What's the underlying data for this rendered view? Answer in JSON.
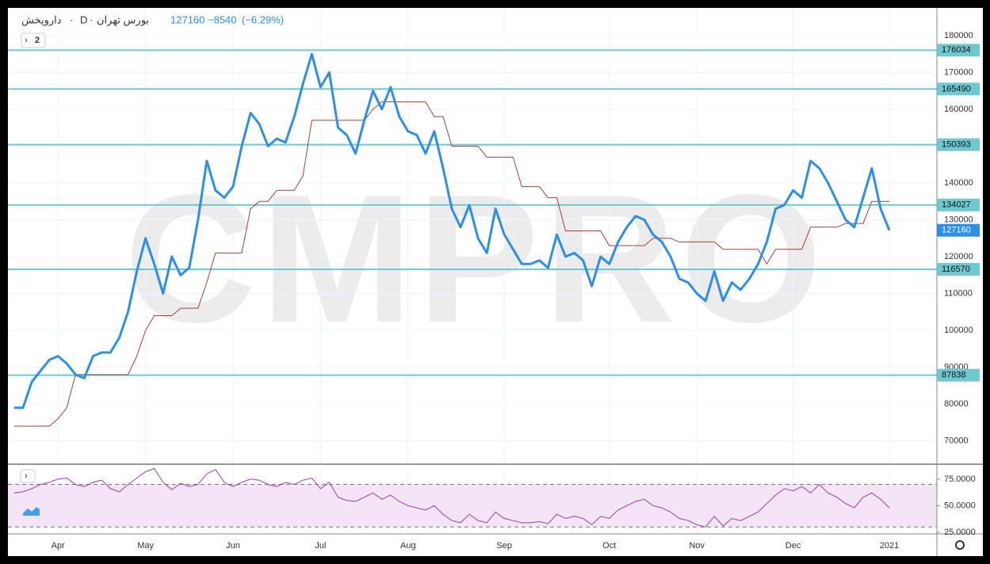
{
  "chart_data": [
    {
      "type": "line",
      "symbol": "داروپخش",
      "interval": "D",
      "exchange": "بورس تهران",
      "last": 127160,
      "change": {
        "value": -8540,
        "label": "−8540"
      },
      "change_pct": {
        "value": -6.29,
        "label": "(−6.29%)"
      },
      "collapsed_count": 2,
      "watermark": "CMPRO",
      "categories": [
        null,
        null,
        null,
        null,
        null,
        "Apr",
        null,
        null,
        null,
        null,
        null,
        null,
        null,
        null,
        null,
        "May",
        null,
        null,
        null,
        null,
        null,
        null,
        null,
        null,
        null,
        "Jun",
        null,
        null,
        null,
        null,
        null,
        null,
        null,
        null,
        null,
        "Jul",
        null,
        null,
        null,
        null,
        null,
        null,
        null,
        null,
        null,
        "Aug",
        null,
        null,
        null,
        null,
        null,
        null,
        null,
        null,
        null,
        null,
        "Sep",
        null,
        null,
        null,
        null,
        null,
        null,
        null,
        null,
        null,
        null,
        null,
        "Oct",
        null,
        null,
        null,
        null,
        null,
        null,
        null,
        null,
        null,
        "Nov",
        null,
        null,
        null,
        null,
        null,
        null,
        null,
        null,
        null,
        null,
        "Dec",
        null,
        null,
        null,
        null,
        null,
        null,
        null,
        null,
        null,
        null,
        "2021"
      ],
      "series": [
        {
          "color": "#2d8fe6",
          "values": [
            79000,
            79000,
            86000,
            89000,
            92000,
            93000,
            91000,
            88000,
            87000,
            93000,
            94000,
            94000,
            98000,
            105000,
            116000,
            125000,
            118000,
            110000,
            120000,
            115000,
            117000,
            130000,
            146000,
            138000,
            136000,
            139000,
            150000,
            159000,
            156000,
            150000,
            152000,
            151000,
            158000,
            167000,
            175000,
            166000,
            170000,
            155000,
            153000,
            148000,
            157000,
            165000,
            160000,
            166000,
            158000,
            154000,
            153000,
            148000,
            154000,
            144000,
            133000,
            128000,
            134000,
            125000,
            121000,
            133000,
            126000,
            122000,
            118000,
            118000,
            119000,
            117000,
            126000,
            120000,
            121000,
            119000,
            112000,
            120000,
            118000,
            124000,
            128000,
            131000,
            130000,
            126000,
            124000,
            120000,
            114000,
            113000,
            110000,
            108000,
            116000,
            108000,
            113000,
            111000,
            114000,
            118000,
            124000,
            133000,
            134000,
            138000,
            136000,
            146000,
            144000,
            140000,
            135000,
            130000,
            128000,
            136000,
            144000,
            133000,
            127160
          ]
        },
        {
          "color": "#a0413a",
          "values": [
            74000,
            74000,
            74000,
            74000,
            74000,
            76000,
            79000,
            88000,
            88000,
            88000,
            88000,
            88000,
            88000,
            88000,
            93000,
            100000,
            104000,
            104000,
            104000,
            106000,
            106000,
            106000,
            113000,
            121000,
            121000,
            121000,
            121000,
            133000,
            135000,
            135000,
            138000,
            138000,
            138000,
            142000,
            157000,
            157000,
            157000,
            157000,
            157000,
            157000,
            157000,
            160000,
            162000,
            162000,
            162000,
            162000,
            162000,
            162000,
            158000,
            158000,
            150000,
            150000,
            150000,
            150000,
            147000,
            147000,
            147000,
            147000,
            139000,
            139000,
            139000,
            136000,
            136000,
            127000,
            127000,
            127000,
            127000,
            127000,
            123000,
            123000,
            123000,
            123000,
            123000,
            125000,
            125000,
            125000,
            124000,
            124000,
            124000,
            124000,
            124000,
            122000,
            122000,
            122000,
            122000,
            122000,
            118000,
            122000,
            122000,
            122000,
            122000,
            128000,
            128000,
            128000,
            128000,
            129000,
            129000,
            129000,
            135000,
            135000,
            135000
          ]
        }
      ],
      "levels": [
        176034,
        165490,
        150393,
        134027,
        116570,
        87838
      ],
      "level_color": "#6ec8d0",
      "ylim": [
        63900,
        187500
      ],
      "yticks": [
        70000,
        80000,
        90000,
        100000,
        110000,
        120000,
        130000,
        140000,
        150000,
        160000,
        170000,
        180000
      ],
      "grid": true
    },
    {
      "type": "line",
      "color": "#9c3fb0",
      "values": [
        62,
        63,
        66,
        70,
        72,
        75,
        76,
        70,
        68,
        72,
        74,
        66,
        63,
        70,
        76,
        82,
        85,
        72,
        65,
        71,
        68,
        70,
        80,
        84,
        72,
        68,
        72,
        75,
        74,
        70,
        68,
        72,
        70,
        74,
        76,
        66,
        72,
        58,
        55,
        54,
        58,
        62,
        56,
        60,
        54,
        50,
        48,
        46,
        50,
        42,
        36,
        34,
        42,
        36,
        34,
        44,
        38,
        36,
        34,
        34,
        35,
        33,
        42,
        38,
        40,
        38,
        32,
        40,
        38,
        46,
        50,
        54,
        56,
        50,
        48,
        44,
        38,
        36,
        32,
        30,
        40,
        31,
        38,
        36,
        40,
        44,
        52,
        60,
        66,
        64,
        68,
        62,
        70,
        62,
        58,
        52,
        48,
        58,
        62,
        56,
        48
      ],
      "band": [
        30,
        70
      ],
      "ylim": [
        24.2,
        88.3
      ],
      "yticks": [
        {
          "value": 25,
          "label": "25.0000"
        },
        {
          "value": 50,
          "label": "50.0000"
        },
        {
          "value": 75,
          "label": "75.0000"
        }
      ]
    }
  ]
}
